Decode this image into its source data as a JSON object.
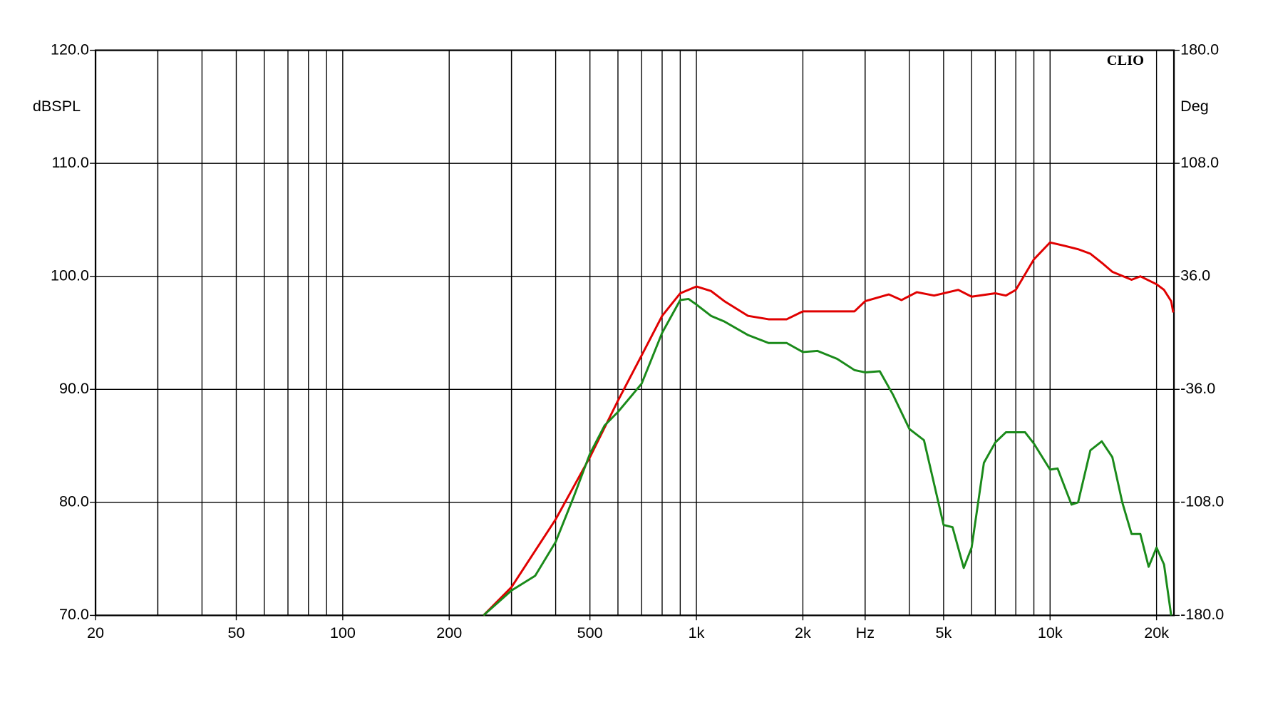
{
  "chart_data": {
    "type": "line",
    "brand": "CLIO",
    "y_label": "dBSPL",
    "y2_label": "Deg",
    "xscale": "log",
    "grid": true,
    "xlim": [
      20,
      22400
    ],
    "xticks": [
      20,
      50,
      100,
      200,
      500,
      {
        "value": 1000,
        "label": "1k"
      },
      {
        "value": 2000,
        "label": "2k"
      },
      {
        "value": 3000,
        "label": "Hz"
      },
      {
        "value": 5000,
        "label": "5k"
      },
      {
        "value": 10000,
        "label": "10k"
      },
      {
        "value": 20000,
        "label": "20k"
      }
    ],
    "xminor": [
      30,
      40,
      60,
      70,
      80,
      90,
      300,
      400,
      600,
      700,
      800,
      900,
      3000,
      4000,
      6000,
      7000,
      8000,
      9000,
      30,
      300
    ],
    "ylim": [
      70,
      120
    ],
    "yticks": [
      {
        "value": 70,
        "label": "70.0"
      },
      {
        "value": 80,
        "label": "80.0"
      },
      {
        "value": 90,
        "label": "90.0"
      },
      {
        "value": 100,
        "label": "100.0"
      },
      {
        "value": 110,
        "label": "110.0"
      },
      {
        "value": 120,
        "label": "120.0"
      }
    ],
    "y2lim": [
      -180,
      180
    ],
    "y2ticks": [
      {
        "value": -180,
        "label": "-180.0"
      },
      {
        "value": -108,
        "label": "-108.0"
      },
      {
        "value": -36,
        "label": "-36.0"
      },
      {
        "value": 36,
        "label": "36.0"
      },
      {
        "value": 108,
        "label": "108.0"
      },
      {
        "value": 180,
        "label": "180.0"
      }
    ],
    "series": [
      {
        "color": "#e00000",
        "x": [
          250,
          300,
          400,
          500,
          600,
          700,
          800,
          900,
          1000,
          1100,
          1200,
          1400,
          1600,
          1800,
          2000,
          2500,
          2800,
          3000,
          3500,
          3800,
          4200,
          4700,
          5500,
          6000,
          7000,
          7500,
          8000,
          9000,
          10000,
          11000,
          12000,
          13000,
          14000,
          15000,
          17000,
          18000,
          20000,
          21000,
          22000,
          22300
        ],
        "values": [
          70,
          72.5,
          78.5,
          84,
          89,
          93,
          96.5,
          98.5,
          99.1,
          98.7,
          97.8,
          96.5,
          96.2,
          96.2,
          96.9,
          96.9,
          96.9,
          97.8,
          98.4,
          97.9,
          98.6,
          98.3,
          98.8,
          98.2,
          98.5,
          98.3,
          98.8,
          101.5,
          103,
          102.7,
          102.4,
          102,
          101.2,
          100.4,
          99.7,
          100,
          99.3,
          98.8,
          97.8,
          96.8
        ]
      },
      {
        "color": "#1a8a1a",
        "x": [
          250,
          300,
          350,
          400,
          450,
          500,
          550,
          600,
          700,
          800,
          900,
          950,
          1000,
          1100,
          1200,
          1400,
          1600,
          1800,
          2000,
          2200,
          2500,
          2800,
          3000,
          3300,
          3600,
          4000,
          4400,
          5000,
          5300,
          5700,
          6000,
          6500,
          7000,
          7500,
          8500,
          9000,
          10000,
          10500,
          11500,
          12000,
          13000,
          14000,
          15000,
          16000,
          17000,
          18000,
          19000,
          20000,
          21000,
          22000
        ],
        "values": [
          70,
          72.2,
          73.5,
          76.5,
          80.5,
          84.3,
          86.8,
          88,
          90.5,
          95,
          97.9,
          98,
          97.5,
          96.5,
          96,
          94.8,
          94.1,
          94.1,
          93.3,
          93.4,
          92.7,
          91.7,
          91.5,
          91.6,
          89.5,
          86.5,
          85.5,
          78,
          77.8,
          74.2,
          76,
          83.5,
          85.3,
          86.2,
          86.2,
          85.2,
          82.9,
          83,
          79.8,
          80,
          84.6,
          85.4,
          84,
          80,
          77.2,
          77.2,
          74.3,
          76,
          74.5,
          70
        ]
      }
    ]
  }
}
